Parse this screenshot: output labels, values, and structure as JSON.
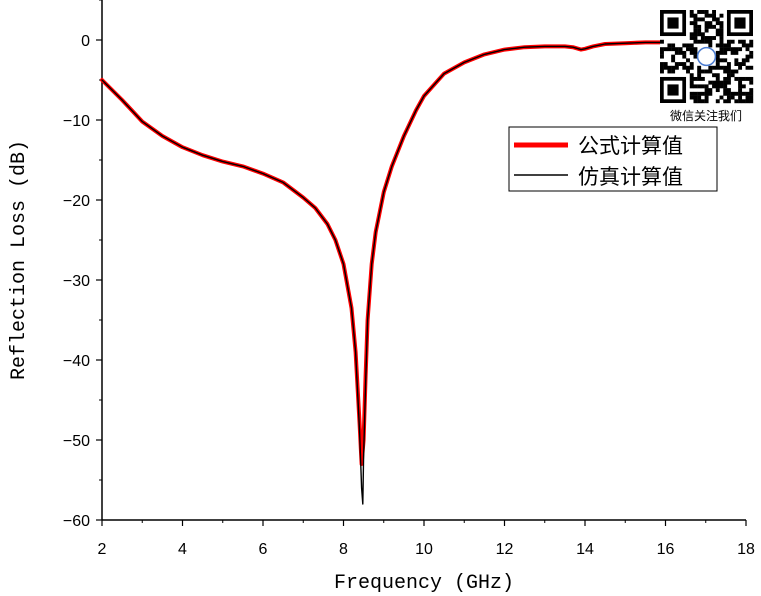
{
  "chart_data": {
    "type": "line",
    "xlabel": "Frequency (GHz)",
    "ylabel": "Reflection Loss (dB)",
    "xlim": [
      2,
      18
    ],
    "ylim": [
      -60,
      5
    ],
    "xticks": [
      2,
      4,
      6,
      8,
      10,
      12,
      14,
      16,
      18
    ],
    "yticks": [
      0,
      -10,
      -20,
      -30,
      -40,
      -50,
      -60
    ],
    "grid": false,
    "legend_position": "right",
    "series": [
      {
        "name": "公式计算值",
        "color": "#ff0000",
        "style": "thick",
        "x": [
          2.0,
          2.5,
          3.0,
          3.5,
          4.0,
          4.5,
          5.0,
          5.5,
          6.0,
          6.5,
          7.0,
          7.3,
          7.6,
          7.8,
          8.0,
          8.2,
          8.3,
          8.4,
          8.45,
          8.5,
          8.55,
          8.6,
          8.7,
          8.8,
          9.0,
          9.2,
          9.5,
          9.8,
          10.0,
          10.5,
          11.0,
          11.5,
          12.0,
          12.5,
          13.0,
          13.5,
          13.7,
          13.9,
          14.0,
          14.2,
          14.5,
          15.0,
          15.5,
          16.0,
          16.2
        ],
        "y": [
          -5.0,
          -7.5,
          -10.2,
          -12.0,
          -13.4,
          -14.4,
          -15.2,
          -15.8,
          -16.7,
          -17.8,
          -19.7,
          -21.0,
          -23.0,
          -25.0,
          -28.0,
          -33.5,
          -39.0,
          -48.0,
          -53.0,
          -50.0,
          -42.0,
          -35.0,
          -28.0,
          -24.0,
          -19.0,
          -15.8,
          -12.0,
          -8.8,
          -7.0,
          -4.2,
          -2.8,
          -1.8,
          -1.2,
          -0.9,
          -0.8,
          -0.8,
          -0.9,
          -1.2,
          -1.1,
          -0.8,
          -0.5,
          -0.4,
          -0.3,
          -0.3,
          -0.3
        ]
      },
      {
        "name": "仿真计算值",
        "color": "#000000",
        "style": "thin",
        "x": [
          2.0,
          2.5,
          3.0,
          3.5,
          4.0,
          4.5,
          5.0,
          5.5,
          6.0,
          6.5,
          7.0,
          7.3,
          7.6,
          7.8,
          8.0,
          8.2,
          8.3,
          8.4,
          8.45,
          8.48,
          8.5,
          8.55,
          8.6,
          8.7,
          8.8,
          9.0,
          9.2,
          9.5,
          9.8,
          10.0,
          10.5,
          11.0,
          11.5,
          12.0,
          12.5,
          13.0,
          13.5,
          13.7,
          13.9,
          14.0,
          14.2,
          14.5,
          15.0,
          15.5,
          16.0,
          16.2
        ],
        "y": [
          -5.0,
          -7.5,
          -10.2,
          -12.0,
          -13.4,
          -14.4,
          -15.2,
          -15.8,
          -16.7,
          -17.8,
          -19.7,
          -21.0,
          -23.0,
          -25.0,
          -28.0,
          -33.5,
          -39.0,
          -49.0,
          -56.0,
          -58.0,
          -52.0,
          -43.0,
          -35.0,
          -28.0,
          -24.0,
          -19.0,
          -15.8,
          -12.0,
          -8.8,
          -7.0,
          -4.2,
          -2.8,
          -1.8,
          -1.2,
          -0.9,
          -0.8,
          -0.8,
          -0.9,
          -1.2,
          -1.1,
          -0.8,
          -0.5,
          -0.4,
          -0.3,
          -0.3,
          -0.3
        ]
      }
    ]
  },
  "qr": {
    "caption": "微信关注我们"
  }
}
